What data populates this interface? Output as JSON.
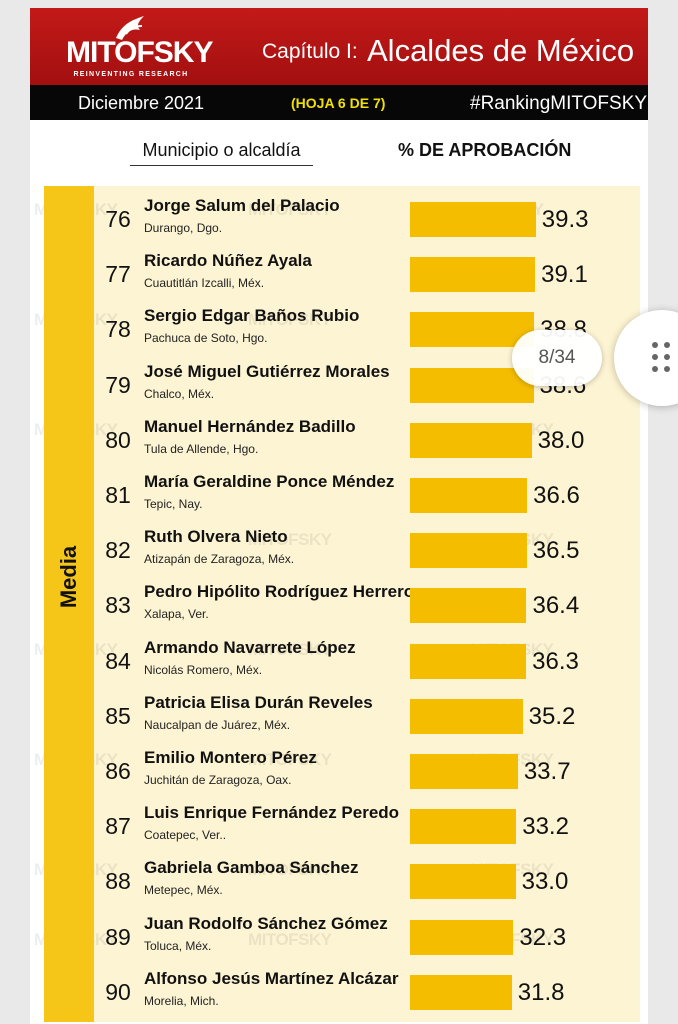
{
  "header": {
    "logo_text": "MITOFSKY",
    "logo_tagline": "REINVENTING RESEARCH",
    "chapter": "Capítulo I:",
    "title": "Alcaldes de México",
    "date": "Diciembre 2021",
    "sheet": "(HOJA 6 DE 7)",
    "hashtag": "#RankingMITOFSKY",
    "brand_color": "#b5141a"
  },
  "columns": {
    "municipality": "Municipio o alcaldía",
    "approval": "% DE APROBACIÓN"
  },
  "band": {
    "label": "Media",
    "color": "#f5c518"
  },
  "watermark": "MITOFSKY",
  "viewer": {
    "page_indicator": "8/34",
    "menu_icon": "drag-handle-dots-icon"
  },
  "chart_data": {
    "type": "bar",
    "orientation": "horizontal",
    "bar_color": "#f5bd00",
    "categories": [
      "Jorge Salum del Palacio",
      "Ricardo Núñez Ayala",
      "Sergio Edgar Baños Rubio",
      "José Miguel Gutiérrez Morales",
      "Manuel Hernández Badillo",
      "María Geraldine Ponce Méndez",
      "Ruth Olvera Nieto",
      "Pedro Hipólito Rodríguez Herrero",
      "Armando Navarrete López",
      "Patricia Elisa Durán Reveles",
      "Emilio Montero Pérez",
      "Luis Enrique Fernández Peredo",
      "Gabriela Gamboa Sánchez",
      "Juan Rodolfo Sánchez Gómez",
      "Alfonso Jesús Martínez Alcázar"
    ],
    "rows": [
      {
        "rank": "76",
        "name": "Jorge Salum del Palacio",
        "place": "Durango, Dgo.",
        "value": 39.3,
        "label": "39.3"
      },
      {
        "rank": "77",
        "name": "Ricardo Núñez Ayala",
        "place": "Cuautitlán Izcalli, Méx.",
        "value": 39.1,
        "label": "39.1"
      },
      {
        "rank": "78",
        "name": "Sergio Edgar Baños Rubio",
        "place": "Pachuca de Soto, Hgo.",
        "value": 38.8,
        "label": "38.8"
      },
      {
        "rank": "79",
        "name": "José Miguel Gutiérrez Morales",
        "place": "Chalco, Méx.",
        "value": 38.6,
        "label": "38.6"
      },
      {
        "rank": "80",
        "name": "Manuel Hernández Badillo",
        "place": "Tula de Allende, Hgo.",
        "value": 38.0,
        "label": "38.0"
      },
      {
        "rank": "81",
        "name": "María Geraldine Ponce Méndez",
        "place": "Tepic, Nay.",
        "value": 36.6,
        "label": "36.6"
      },
      {
        "rank": "82",
        "name": "Ruth Olvera Nieto",
        "place": "Atizapán de Zaragoza, Méx.",
        "value": 36.5,
        "label": "36.5"
      },
      {
        "rank": "83",
        "name": "Pedro Hipólito Rodríguez Herrero",
        "place": "Xalapa, Ver.",
        "value": 36.4,
        "label": "36.4"
      },
      {
        "rank": "84",
        "name": "Armando Navarrete López",
        "place": "Nicolás Romero, Méx.",
        "value": 36.3,
        "label": "36.3"
      },
      {
        "rank": "85",
        "name": "Patricia Elisa Durán Reveles",
        "place": "Naucalpan de Juárez, Méx.",
        "value": 35.2,
        "label": "35.2"
      },
      {
        "rank": "86",
        "name": "Emilio Montero Pérez",
        "place": "Juchitán de Zaragoza, Oax.",
        "value": 33.7,
        "label": "33.7"
      },
      {
        "rank": "87",
        "name": "Luis Enrique Fernández Peredo",
        "place": "Coatepec, Ver..",
        "value": 33.2,
        "label": "33.2"
      },
      {
        "rank": "88",
        "name": "Gabriela Gamboa Sánchez",
        "place": "Metepec, Méx.",
        "value": 33.0,
        "label": "33.0"
      },
      {
        "rank": "89",
        "name": "Juan Rodolfo Sánchez Gómez",
        "place": "Toluca, Méx.",
        "value": 32.3,
        "label": "32.3"
      },
      {
        "rank": "90",
        "name": "Alfonso Jesús Martínez Alcázar",
        "place": "Morelia, Mich.",
        "value": 31.8,
        "label": "31.8"
      }
    ]
  }
}
